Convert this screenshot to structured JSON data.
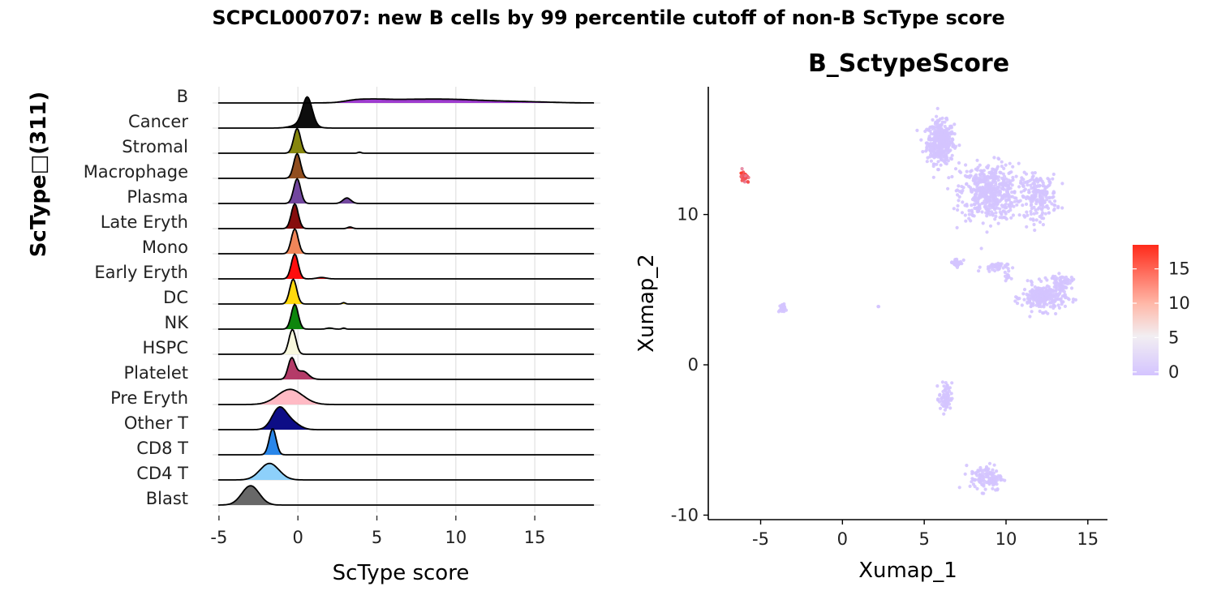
{
  "title": "SCPCL000707: new B cells by 99 percentile cutoff of non-B ScType score",
  "chart_data": [
    {
      "type": "ridgeline",
      "title": "",
      "xlabel": "ScType score",
      "ylabel": "ScType□(311)",
      "xlim": [
        -5.2,
        19
      ],
      "xticks": [
        -5,
        0,
        5,
        10,
        15
      ],
      "grid": true,
      "categories": [
        "B",
        "Cancer",
        "Stromal",
        "Macrophage",
        "Plasma",
        "Late Eryth",
        "Mono",
        "Early Eryth",
        "DC",
        "NK",
        "HSPC",
        "Platelet",
        "Pre Eryth",
        "Other T",
        "CD8 T",
        "CD4 T",
        "Blast"
      ],
      "series": [
        {
          "category": "B",
          "color": "#9932CC",
          "peaks": [
            [
              3.5,
              0.6,
              0.04
            ],
            [
              4.5,
              1.0,
              0.08
            ],
            [
              7.0,
              2.0,
              0.12
            ],
            [
              10.0,
              1.5,
              0.08
            ],
            [
              12.5,
              1.5,
              0.05
            ],
            [
              15.0,
              1.5,
              0.03
            ]
          ]
        },
        {
          "category": "Cancer",
          "color": "#000000",
          "peaks": [
            [
              0.6,
              0.3,
              1.0
            ],
            [
              0.3,
              0.6,
              0.15
            ]
          ]
        },
        {
          "category": "Stromal",
          "color": "#808000",
          "peaks": [
            [
              -0.05,
              0.22,
              0.9
            ],
            [
              3.9,
              0.1,
              0.04
            ]
          ]
        },
        {
          "category": "Macrophage",
          "color": "#8B4513",
          "peaks": [
            [
              -0.05,
              0.22,
              0.9
            ]
          ]
        },
        {
          "category": "Plasma",
          "color": "#6A3D9A",
          "peaks": [
            [
              -0.05,
              0.22,
              0.9
            ],
            [
              3.1,
              0.25,
              0.2
            ]
          ]
        },
        {
          "category": "Late Eryth",
          "color": "#800000",
          "peaks": [
            [
              -0.2,
              0.22,
              0.9
            ],
            [
              3.3,
              0.15,
              0.06
            ]
          ]
        },
        {
          "category": "Mono",
          "color": "#EF7F50",
          "peaks": [
            [
              -0.2,
              0.22,
              0.9
            ]
          ]
        },
        {
          "category": "Early Eryth",
          "color": "#FF0000",
          "peaks": [
            [
              -0.2,
              0.22,
              0.9
            ],
            [
              1.5,
              0.3,
              0.05
            ]
          ]
        },
        {
          "category": "DC",
          "color": "#FFD700",
          "peaks": [
            [
              -0.3,
              0.22,
              0.9
            ],
            [
              2.9,
              0.1,
              0.05
            ]
          ]
        },
        {
          "category": "NK",
          "color": "#008000",
          "peaks": [
            [
              -0.2,
              0.22,
              0.9
            ],
            [
              2.0,
              0.2,
              0.04
            ],
            [
              2.9,
              0.1,
              0.04
            ]
          ]
        },
        {
          "category": "HSPC",
          "color": "#F8F8DC",
          "peaks": [
            [
              -0.35,
              0.22,
              0.9
            ]
          ]
        },
        {
          "category": "Platelet",
          "color": "#B03060",
          "peaks": [
            [
              -0.4,
              0.22,
              0.75
            ],
            [
              0.3,
              0.35,
              0.3
            ]
          ]
        },
        {
          "category": "Pre Eryth",
          "color": "#FFB6C1",
          "peaks": [
            [
              -0.5,
              0.8,
              0.55
            ]
          ]
        },
        {
          "category": "Other T",
          "color": "#000080",
          "peaks": [
            [
              -1.2,
              0.45,
              0.75
            ],
            [
              -0.4,
              0.5,
              0.25
            ]
          ]
        },
        {
          "category": "CD8 T",
          "color": "#1E80E8",
          "peaks": [
            [
              -1.6,
              0.22,
              0.95
            ]
          ]
        },
        {
          "category": "CD4 T",
          "color": "#87CEFA",
          "peaks": [
            [
              -1.8,
              0.6,
              0.6
            ]
          ]
        },
        {
          "category": "Blast",
          "color": "#606060",
          "peaks": [
            [
              -3.0,
              0.55,
              0.7
            ]
          ]
        }
      ]
    },
    {
      "type": "scatter",
      "title": "B_SctypeScore",
      "xlabel": "Xumap_1",
      "ylabel": "Xumap_2",
      "xlim": [
        -8.2,
        16.2
      ],
      "ylim": [
        -10.3,
        18.5
      ],
      "xticks": [
        -5,
        0,
        5,
        10,
        15
      ],
      "yticks": [
        -10,
        0,
        10
      ],
      "point_color_low": "#D4C4FF",
      "point_color_high": "#FF2A1A",
      "clusters": [
        {
          "center": [
            6.0,
            14.8
          ],
          "spread": [
            0.75,
            1.25
          ],
          "n": 420,
          "score": 0
        },
        {
          "center": [
            9.0,
            11.5
          ],
          "spread": [
            1.6,
            1.7
          ],
          "n": 500,
          "score": 0
        },
        {
          "center": [
            12.0,
            11.2
          ],
          "spread": [
            1.0,
            1.3
          ],
          "n": 200,
          "score": 0
        },
        {
          "center": [
            12.3,
            4.5
          ],
          "spread": [
            1.2,
            0.8
          ],
          "n": 260,
          "score": 0
        },
        {
          "center": [
            13.4,
            5.5
          ],
          "spread": [
            0.6,
            0.4
          ],
          "n": 60,
          "score": 0
        },
        {
          "center": [
            7.0,
            6.8
          ],
          "spread": [
            0.35,
            0.25
          ],
          "n": 35,
          "score": 0
        },
        {
          "center": [
            9.3,
            6.5
          ],
          "spread": [
            0.7,
            0.3
          ],
          "n": 40,
          "score": 0
        },
        {
          "center": [
            10.1,
            5.9
          ],
          "spread": [
            0.15,
            0.3
          ],
          "n": 10,
          "score": 0
        },
        {
          "center": [
            -3.7,
            3.7
          ],
          "spread": [
            0.18,
            0.3
          ],
          "n": 25,
          "score": 0
        },
        {
          "center": [
            2.2,
            3.9
          ],
          "spread": [
            0.05,
            0.05
          ],
          "n": 2,
          "score": 0
        },
        {
          "center": [
            6.3,
            -2.2
          ],
          "spread": [
            0.35,
            0.9
          ],
          "n": 70,
          "score": 0
        },
        {
          "center": [
            8.8,
            -7.5
          ],
          "spread": [
            0.9,
            0.8
          ],
          "n": 120,
          "score": 0
        },
        {
          "center": [
            -6.0,
            12.5
          ],
          "spread": [
            0.22,
            0.35
          ],
          "n": 40,
          "score": 14
        }
      ],
      "legend": {
        "position": "right",
        "ticks": [
          0,
          5,
          10,
          15
        ],
        "range": [
          -0.5,
          18.5
        ]
      }
    }
  ]
}
